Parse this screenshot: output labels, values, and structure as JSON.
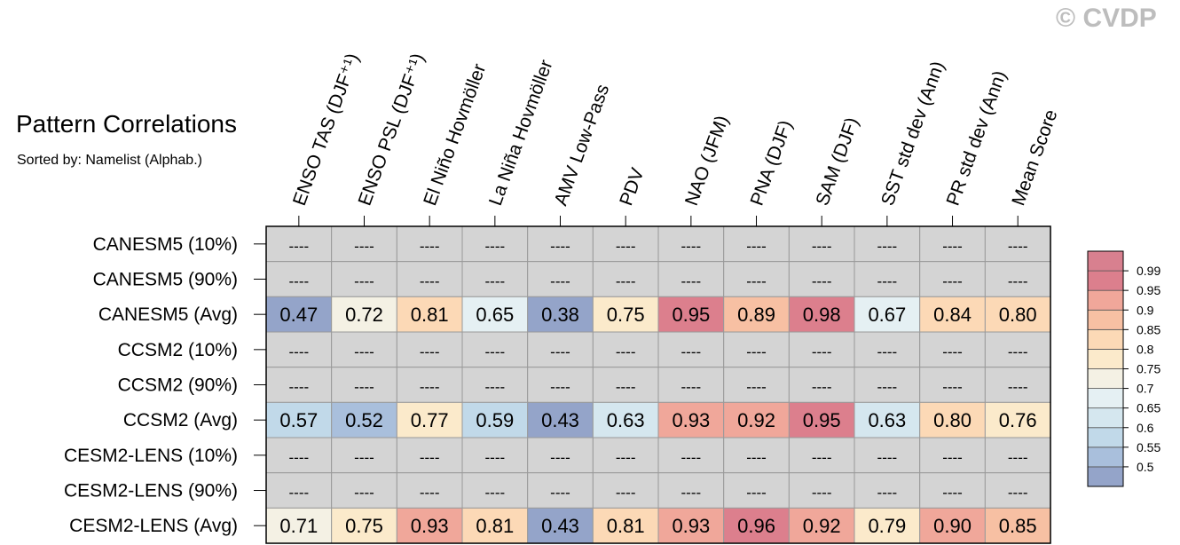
{
  "title": "Pattern Correlations",
  "subtitle": "Sorted by: Namelist (Alphab.)",
  "copyright": "© CVDP",
  "chart_data": {
    "type": "heatmap",
    "columns": [
      "ENSO TAS (DJF⁺¹)",
      "ENSO PSL (DJF⁺¹)",
      "El Niño Hovmöller",
      "La Niña Hovmöller",
      "AMV Low-Pass",
      "PDV",
      "NAO (JFM)",
      "PNA (DJF)",
      "SAM (DJF)",
      "SST std dev (Ann)",
      "PR std dev (Ann)",
      "Mean Score"
    ],
    "rows": [
      {
        "label": "CANESM5 (10%)",
        "values": [
          null,
          null,
          null,
          null,
          null,
          null,
          null,
          null,
          null,
          null,
          null,
          null
        ]
      },
      {
        "label": "CANESM5 (90%)",
        "values": [
          null,
          null,
          null,
          null,
          null,
          null,
          null,
          null,
          null,
          null,
          null,
          null
        ]
      },
      {
        "label": "CANESM5 (Avg)",
        "values": [
          0.47,
          0.72,
          0.81,
          0.65,
          0.38,
          0.75,
          0.95,
          0.89,
          0.98,
          0.67,
          0.84,
          0.8
        ]
      },
      {
        "label": "CCSM2 (10%)",
        "values": [
          null,
          null,
          null,
          null,
          null,
          null,
          null,
          null,
          null,
          null,
          null,
          null
        ]
      },
      {
        "label": "CCSM2 (90%)",
        "values": [
          null,
          null,
          null,
          null,
          null,
          null,
          null,
          null,
          null,
          null,
          null,
          null
        ]
      },
      {
        "label": "CCSM2 (Avg)",
        "values": [
          0.57,
          0.52,
          0.77,
          0.59,
          0.43,
          0.63,
          0.93,
          0.92,
          0.95,
          0.63,
          0.8,
          0.76
        ]
      },
      {
        "label": "CESM2-LENS (10%)",
        "values": [
          null,
          null,
          null,
          null,
          null,
          null,
          null,
          null,
          null,
          null,
          null,
          null
        ]
      },
      {
        "label": "CESM2-LENS (90%)",
        "values": [
          null,
          null,
          null,
          null,
          null,
          null,
          null,
          null,
          null,
          null,
          null,
          null
        ]
      },
      {
        "label": "CESM2-LENS (Avg)",
        "values": [
          0.71,
          0.75,
          0.93,
          0.81,
          0.43,
          0.81,
          0.93,
          0.96,
          0.92,
          0.79,
          0.9,
          0.85
        ]
      }
    ],
    "missing_text": "----",
    "missing_color": "#d4d4d4",
    "legend": {
      "position": "right",
      "levels": [
        "0.5",
        "0.55",
        "0.6",
        "0.65",
        "0.7",
        "0.75",
        "0.8",
        "0.85",
        "0.9",
        "0.95",
        "0.99"
      ],
      "bin_colors": [
        "#94a4c9",
        "#a9bfdc",
        "#c1d9e9",
        "#d5e7ef",
        "#e5f0f3",
        "#f4f1e4",
        "#fbeacb",
        "#fcd9b6",
        "#f7c0a3",
        "#f0a79a",
        "#dc7f8d",
        "#d8808f"
      ]
    }
  }
}
